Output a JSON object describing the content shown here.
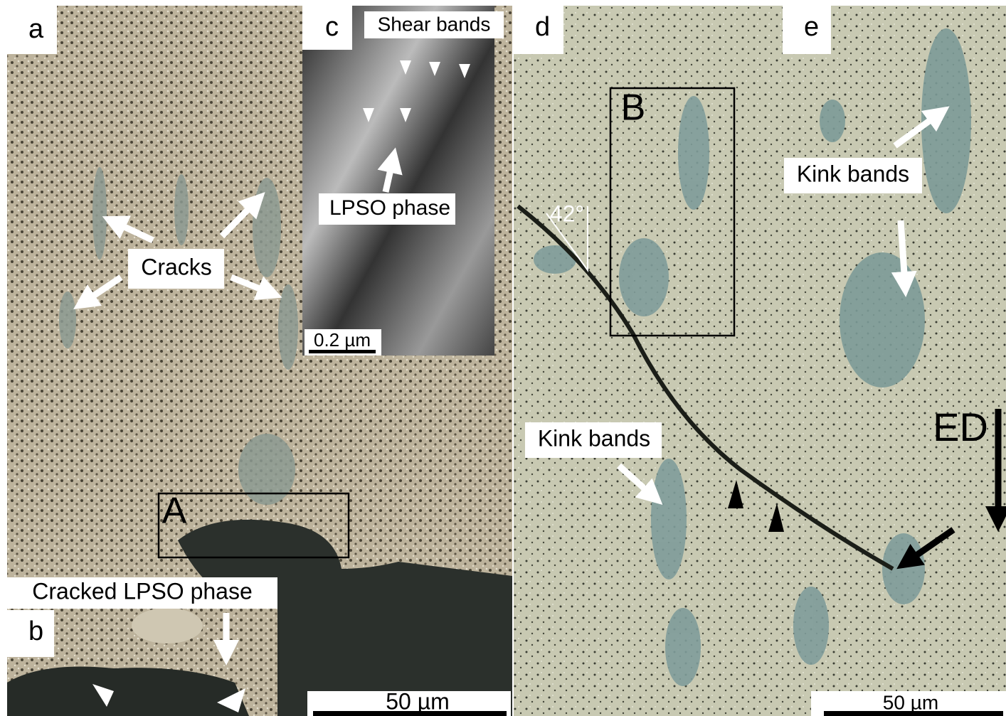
{
  "panels": {
    "a": {
      "label": "a",
      "cracks": "Cracks",
      "box": "A",
      "scale_bar": "50 µm"
    },
    "b": {
      "label": "b",
      "annotation": "Cracked LPSO phase"
    },
    "c": {
      "label": "c",
      "shear": "Shear bands",
      "lpso": "LPSO phase",
      "scale_bar": "0.2 µm"
    },
    "d": {
      "label": "d",
      "box": "B",
      "angle": "42°",
      "kink": "Kink bands",
      "direction": "ED",
      "scale_bar": "50 µm"
    },
    "e": {
      "label": "e",
      "kink": "Kink bands"
    }
  }
}
